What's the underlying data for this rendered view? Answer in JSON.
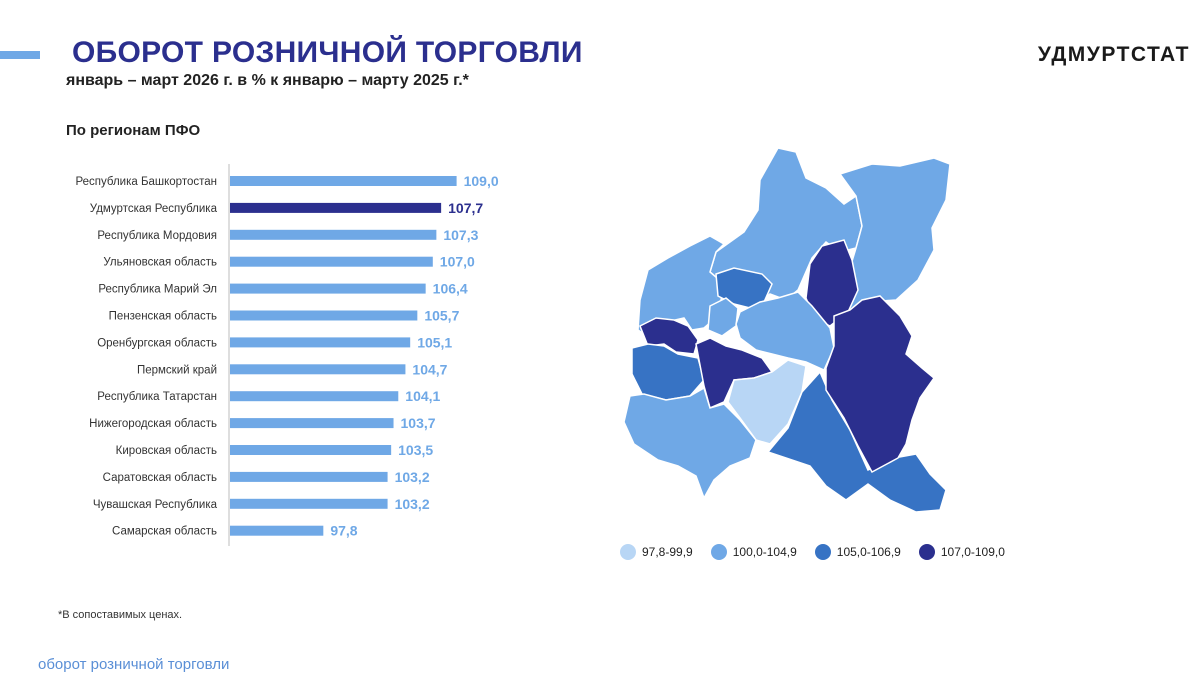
{
  "header": {
    "title": "ОБОРОТ РОЗНИЧНОЙ ТОРГОВЛИ",
    "subtitle": "январь – март 2026 г. в % к январю – марту 2025 г.*",
    "brand": "УДМУРТСТАТ",
    "accent_color": "#6fa8e6"
  },
  "section_title": "По регионам ПФО",
  "chart_data": {
    "type": "bar",
    "orientation": "horizontal",
    "categories": [
      "Республика Башкортостан",
      "Удмуртская Республика",
      "Республика Мордовия",
      "Ульяновская область",
      "Республика Марий Эл",
      "Пензенская область",
      "Оренбургская область",
      "Пермский край",
      "Республика Татарстан",
      "Нижегородская область",
      "Кировская область",
      "Саратовская область",
      "Чувашская Республика",
      "Самарская область"
    ],
    "values": [
      109.0,
      107.7,
      107.3,
      107.0,
      106.4,
      105.7,
      105.1,
      104.7,
      104.1,
      103.7,
      103.5,
      103.2,
      103.2,
      97.8
    ],
    "value_labels": [
      "109,0",
      "107,7",
      "107,3",
      "107,0",
      "106,4",
      "105,7",
      "105,1",
      "104,7",
      "104,1",
      "103,7",
      "103,5",
      "103,2",
      "103,2",
      "97,8"
    ],
    "highlight_index": 1,
    "bar_color": "#6fa8e6",
    "highlight_color": "#2b2f8e",
    "xlim": [
      90,
      110
    ]
  },
  "map": {
    "legend": [
      {
        "label": "97,8-99,9",
        "color": "#b8d6f5"
      },
      {
        "label": "100,0-104,9",
        "color": "#6fa8e6"
      },
      {
        "label": "105,0-106,9",
        "color": "#3773c4"
      },
      {
        "label": "107,0-109,0",
        "color": "#2b2f8e"
      }
    ]
  },
  "footnote": "*В сопоставимых ценах.",
  "footer_label": "оборот розничной торговли"
}
